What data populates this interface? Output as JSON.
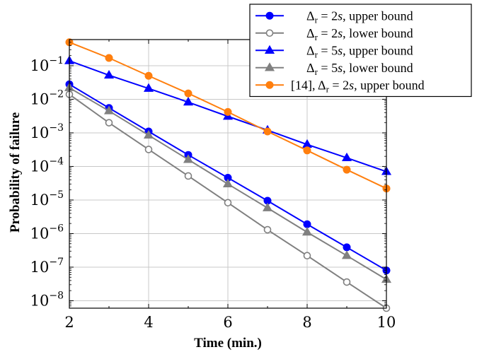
{
  "chart_data": {
    "type": "line",
    "xlabel": "Time (min.)",
    "ylabel": "Probability of failure",
    "x": [
      2,
      3,
      4,
      5,
      6,
      7,
      8,
      9,
      10
    ],
    "xlim": [
      2,
      10
    ],
    "xticks": [
      2,
      4,
      6,
      8,
      10
    ],
    "yscale": "log",
    "ylim": [
      6e-09,
      0.6
    ],
    "yticks": [
      1e-08,
      1e-07,
      1e-06,
      1e-05,
      0.0001,
      0.001,
      0.01,
      0.1
    ],
    "grid": true,
    "legend_position": "top-right",
    "series": [
      {
        "name": "Δr = 2s, upper bound",
        "label_parts": [
          "Δ",
          "r",
          " = 2",
          "s",
          ", upper bound"
        ],
        "color": "#0000ff",
        "marker": "filled-circle",
        "values": [
          0.028,
          0.0055,
          0.0011,
          0.00022,
          4.6e-05,
          9.5e-06,
          1.9e-06,
          3.9e-07,
          8e-08
        ]
      },
      {
        "name": "Δr = 2s, lower bound",
        "label_parts": [
          "Δ",
          "r",
          " = 2",
          "s",
          ", lower bound"
        ],
        "color": "#808080",
        "marker": "open-circle",
        "values": [
          0.014,
          0.002,
          0.00032,
          5.2e-05,
          8.3e-06,
          1.3e-06,
          2.2e-07,
          3.6e-08,
          6e-09
        ]
      },
      {
        "name": "Δr = 5s, upper bound",
        "label_parts": [
          "Δ",
          "r",
          " = 5",
          "s",
          ", upper bound"
        ],
        "color": "#0000ff",
        "marker": "filled-triangle",
        "values": [
          0.14,
          0.052,
          0.021,
          0.0082,
          0.0031,
          0.0012,
          0.00045,
          0.00018,
          7e-05
        ]
      },
      {
        "name": "Δr = 5s, lower bound",
        "label_parts": [
          "Δ",
          "r",
          " = 5",
          "s",
          ", lower bound"
        ],
        "color": "#808080",
        "marker": "filled-triangle",
        "values": [
          0.022,
          0.0045,
          0.00085,
          0.00016,
          3e-05,
          5.8e-06,
          1.1e-06,
          2.2e-07,
          4.3e-08
        ]
      },
      {
        "name": "[14], Δr = 2s, upper bound",
        "label_parts": [
          "[14], Δ",
          "r",
          " = 2",
          "s",
          ", upper bound"
        ],
        "color": "#ff7f0e",
        "marker": "filled-circle",
        "values": [
          0.5,
          0.17,
          0.05,
          0.015,
          0.0042,
          0.0011,
          0.0003,
          8e-05,
          2.2e-05
        ]
      }
    ]
  }
}
